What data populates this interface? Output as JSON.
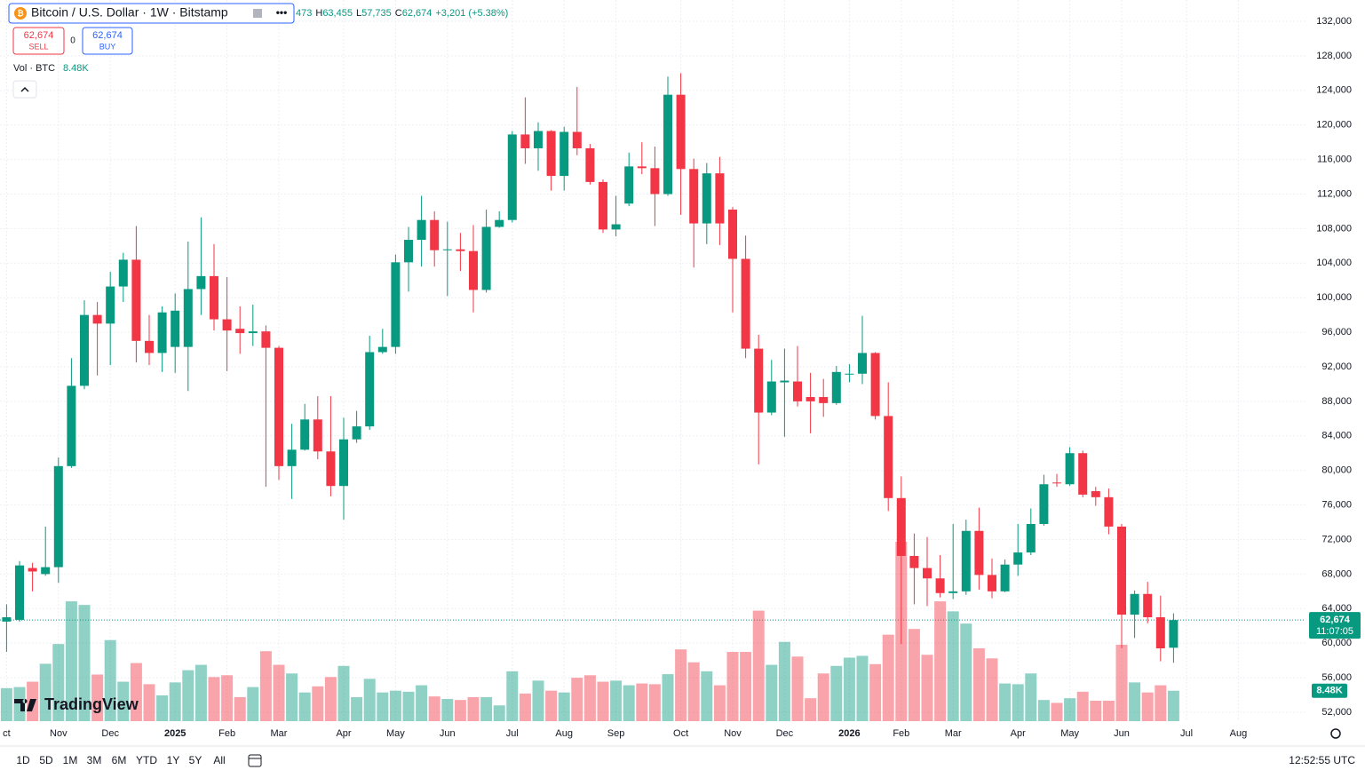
{
  "header": {
    "symbol": "Bitcoin / U.S. Dollar · 1W · Bitstamp",
    "ohlc": [
      {
        "value": "473"
      },
      {
        "label": "H",
        "value": "63,455"
      },
      {
        "label": "L",
        "value": "57,735"
      },
      {
        "label": "C",
        "value": "62,674"
      },
      {
        "value": "+3,201 (+5.38%)"
      }
    ],
    "sell": {
      "price": "62,674",
      "label": "SELL"
    },
    "spread": "0",
    "buy": {
      "price": "62,674",
      "label": "BUY"
    },
    "volume_legend": {
      "label": "Vol · BTC",
      "value": "8.48K"
    }
  },
  "logo": "TradingView",
  "toolbar": {
    "ranges": [
      "1D",
      "5D",
      "1M",
      "3M",
      "6M",
      "YTD",
      "1Y",
      "5Y",
      "All"
    ],
    "clock": "12:52:55 UTC"
  },
  "chart_data": {
    "type": "candlestick",
    "up_color": "#089981",
    "down_color": "#f23645",
    "grid": true,
    "categories": [
      "ct",
      null,
      null,
      null,
      "Nov",
      null,
      null,
      null,
      "Dec",
      null,
      null,
      null,
      null,
      "2025",
      null,
      null,
      null,
      "Feb",
      null,
      null,
      null,
      "Mar",
      null,
      null,
      null,
      null,
      "Apr",
      null,
      null,
      null,
      "May",
      null,
      null,
      null,
      "Jun",
      null,
      null,
      null,
      null,
      "Jul",
      null,
      null,
      null,
      "Aug",
      null,
      null,
      null,
      "Sep",
      null,
      null,
      null,
      null,
      "Oct",
      null,
      null,
      null,
      "Nov",
      null,
      null,
      null,
      "Dec",
      null,
      null,
      null,
      null,
      "2026",
      null,
      null,
      null,
      "Feb",
      null,
      null,
      null,
      "Mar",
      null,
      null,
      null,
      null,
      "Apr",
      null,
      null,
      null,
      "May",
      null,
      null,
      null,
      "Jun",
      null,
      null,
      null,
      null,
      "Jul",
      null,
      null,
      null,
      "Aug"
    ],
    "open": [
      62500,
      62700,
      68700,
      68000,
      68800,
      80500,
      89800,
      98000,
      97000,
      101300,
      104400,
      95000,
      93600,
      94300,
      94300,
      101000,
      102500,
      97500,
      96400,
      95900,
      96100,
      94200,
      80500,
      82400,
      85900,
      82200,
      78200,
      83600,
      85100,
      93700,
      94300,
      104100,
      106700,
      109000,
      105500,
      105600,
      105400,
      100900,
      108200,
      109000,
      118900,
      117300,
      119300,
      114100,
      119200,
      117300,
      113400,
      107900,
      110900,
      115200,
      115000,
      112000,
      123500,
      114900,
      108600,
      114400,
      110200,
      104500,
      94100,
      86700,
      90200,
      90300,
      88500,
      88500,
      87800,
      91100,
      91200,
      93600,
      86300,
      76800,
      70100,
      68700,
      67500,
      65800,
      66000,
      73000,
      67900,
      66000,
      69100,
      70500,
      73800,
      78600,
      78400,
      82000,
      77600,
      76900,
      73500,
      63300,
      65700,
      63000,
      59473,
      null,
      null,
      null,
      null,
      null
    ],
    "high": [
      64500,
      69500,
      69300,
      73500,
      81500,
      93000,
      99700,
      99500,
      103000,
      105200,
      108300,
      98000,
      99000,
      100500,
      106500,
      109300,
      106200,
      102400,
      99000,
      99200,
      96800,
      94400,
      85400,
      87700,
      88600,
      88600,
      86100,
      86900,
      95600,
      96400,
      105000,
      108200,
      111800,
      110000,
      108800,
      107500,
      108400,
      110200,
      110000,
      119300,
      123200,
      120300,
      119400,
      119800,
      124400,
      117800,
      113700,
      111800,
      116800,
      118000,
      117500,
      125600,
      126000,
      116100,
      115600,
      116300,
      110500,
      107200,
      95700,
      92800,
      94100,
      94400,
      91300,
      90600,
      92100,
      92300,
      97900,
      93700,
      90200,
      79300,
      72700,
      72300,
      70200,
      73800,
      74300,
      75700,
      69800,
      69700,
      73800,
      75600,
      79500,
      79600,
      82700,
      82300,
      78100,
      77900,
      73800,
      66100,
      67100,
      65500,
      63455,
      null,
      null,
      null,
      null,
      null
    ],
    "low": [
      59000,
      62500,
      66000,
      67800,
      67000,
      80300,
      89400,
      91000,
      92200,
      99500,
      92500,
      92200,
      91400,
      91300,
      89200,
      98000,
      96200,
      91500,
      93500,
      94400,
      78100,
      78900,
      76700,
      82300,
      81300,
      77000,
      74300,
      83200,
      84700,
      93500,
      93500,
      100700,
      103600,
      103600,
      100200,
      103100,
      98300,
      100600,
      108100,
      108700,
      115500,
      114700,
      112400,
      112400,
      116500,
      113100,
      107500,
      107100,
      110600,
      114300,
      108300,
      111800,
      109600,
      103500,
      106200,
      106100,
      98300,
      93000,
      80700,
      86400,
      83900,
      87400,
      84300,
      86200,
      87600,
      90200,
      90000,
      85900,
      75300,
      59900,
      64500,
      64300,
      65300,
      65100,
      65600,
      66200,
      65200,
      65900,
      67800,
      70200,
      73600,
      78100,
      78200,
      76900,
      75900,
      72600,
      59400,
      60600,
      62300,
      57900,
      57735,
      null,
      null,
      null,
      null,
      null
    ],
    "close": [
      63000,
      69000,
      68300,
      68800,
      80500,
      89800,
      98000,
      97000,
      101300,
      104400,
      95000,
      93600,
      98300,
      98500,
      101000,
      102500,
      97500,
      96200,
      95900,
      96100,
      94200,
      80500,
      82400,
      85900,
      82200,
      78200,
      83600,
      85100,
      93700,
      94300,
      104100,
      106700,
      109000,
      105500,
      105600,
      105400,
      100900,
      108200,
      109000,
      118900,
      117300,
      119300,
      114100,
      119200,
      117300,
      113400,
      107900,
      108500,
      115200,
      115000,
      112000,
      123500,
      114900,
      108600,
      114400,
      108600,
      104500,
      94100,
      86700,
      90300,
      90400,
      88000,
      88000,
      87800,
      91400,
      91200,
      93600,
      86300,
      76800,
      70100,
      68700,
      67500,
      65800,
      66000,
      73000,
      67900,
      66000,
      69100,
      70500,
      73800,
      78400,
      78500,
      82000,
      77200,
      76900,
      73500,
      63300,
      65700,
      63000,
      59400,
      62674,
      null,
      null,
      null,
      null,
      null
    ],
    "volume": [
      9200,
      9500,
      11000,
      16000,
      21500,
      33400,
      32400,
      13000,
      22600,
      11000,
      16200,
      10300,
      7200,
      10800,
      14200,
      15700,
      12300,
      12800,
      6700,
      9500,
      19500,
      15700,
      13300,
      8000,
      9700,
      12300,
      15400,
      6700,
      11800,
      8000,
      8500,
      8200,
      10000,
      6900,
      6200,
      5900,
      6700,
      6700,
      4400,
      13900,
      7700,
      11300,
      8500,
      8000,
      12100,
      12800,
      11000,
      11300,
      10000,
      10500,
      10300,
      13100,
      20000,
      16400,
      13900,
      10000,
      19300,
      19300,
      30800,
      15700,
      22100,
      18000,
      6400,
      13300,
      15400,
      17700,
      18200,
      15900,
      24100,
      50000,
      25700,
      18500,
      33400,
      30600,
      27200,
      20300,
      17500,
      10500,
      10300,
      13300,
      5900,
      5100,
      6400,
      8200,
      5700,
      5700,
      21300,
      10800,
      8000,
      10000,
      8480,
      null,
      null,
      null,
      null,
      null
    ],
    "last_price_label": "62,674",
    "countdown": "11:07:05",
    "last_volume_label": "8.48K",
    "ylim": [
      50970,
      134470
    ],
    "yticks": [
      {
        "value": 52000,
        "label": "52,000"
      },
      {
        "value": 56000,
        "label": "56,000"
      },
      {
        "value": 60000,
        "label": "60,000"
      },
      {
        "value": 64000,
        "label": "64,000"
      },
      {
        "value": 68000,
        "label": "68,000"
      },
      {
        "value": 72000,
        "label": "72,000"
      },
      {
        "value": 76000,
        "label": "76,000"
      },
      {
        "value": 80000,
        "label": "80,000"
      },
      {
        "value": 84000,
        "label": "84,000"
      },
      {
        "value": 88000,
        "label": "88,000"
      },
      {
        "value": 92000,
        "label": "92,000"
      },
      {
        "value": 96000,
        "label": "96,000"
      },
      {
        "value": 100000,
        "label": "100,000"
      },
      {
        "value": 104000,
        "label": "104,000"
      },
      {
        "value": 108000,
        "label": "108,000"
      },
      {
        "value": 112000,
        "label": "112,000"
      },
      {
        "value": 116000,
        "label": "116,000"
      },
      {
        "value": 120000,
        "label": "120,000"
      },
      {
        "value": 124000,
        "label": "124,000"
      },
      {
        "value": 128000,
        "label": "128,000"
      },
      {
        "value": 132000,
        "label": "132,000"
      }
    ]
  }
}
